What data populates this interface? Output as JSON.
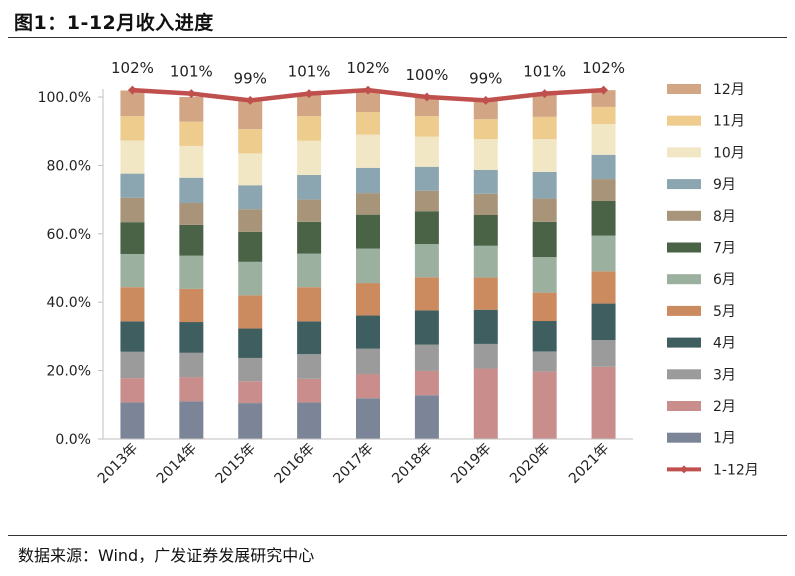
{
  "header": {
    "title": "图1：1-12月收入进度"
  },
  "footer": {
    "source": "数据来源：Wind，广发证券发展研究中心"
  },
  "chart_data": {
    "type": "bar",
    "stacked": true,
    "categories": [
      "2013年",
      "2014年",
      "2015年",
      "2016年",
      "2017年",
      "2018年",
      "2019年",
      "2020年",
      "2021年"
    ],
    "series": [
      {
        "name": "1月",
        "color": "#7b8597",
        "values": [
          10.7,
          11.0,
          10.5,
          10.7,
          11.9,
          12.8,
          0,
          0,
          0
        ]
      },
      {
        "name": "2月",
        "color": "#c98e8c",
        "values": [
          7.1,
          7.1,
          6.4,
          6.9,
          7.1,
          7.1,
          20.6,
          19.7,
          21.1
        ]
      },
      {
        "name": "3月",
        "color": "#9b9b9b",
        "values": [
          7.7,
          7.1,
          6.8,
          7.2,
          7.4,
          7.7,
          7.2,
          5.9,
          7.8
        ]
      },
      {
        "name": "4月",
        "color": "#3f5e5f",
        "values": [
          8.9,
          9.0,
          8.6,
          9.6,
          9.7,
          10.0,
          10.0,
          8.9,
          10.7
        ]
      },
      {
        "name": "5月",
        "color": "#cc8b5f",
        "values": [
          10.0,
          9.7,
          9.7,
          10.0,
          9.5,
          9.7,
          9.4,
          8.3,
          9.4
        ]
      },
      {
        "name": "6月",
        "color": "#9bb09f",
        "values": [
          9.7,
          9.7,
          9.8,
          9.8,
          10.1,
          9.7,
          9.3,
          10.4,
          10.5
        ]
      },
      {
        "name": "7月",
        "color": "#4a6347",
        "values": [
          9.3,
          9.0,
          8.8,
          9.3,
          9.9,
          9.6,
          9.0,
          10.3,
          10.1
        ]
      },
      {
        "name": "8月",
        "color": "#a89479",
        "values": [
          7.1,
          6.4,
          6.6,
          6.5,
          6.3,
          6.0,
          6.2,
          6.8,
          6.4
        ]
      },
      {
        "name": "9月",
        "color": "#8ba6b0",
        "values": [
          7.1,
          7.4,
          7.0,
          7.2,
          7.4,
          7.0,
          7.0,
          7.8,
          7.1
        ]
      },
      {
        "name": "10月",
        "color": "#f2e7c4",
        "values": [
          9.7,
          9.3,
          9.3,
          10.0,
          9.7,
          8.8,
          9.0,
          9.6,
          9.0
        ]
      },
      {
        "name": "11月",
        "color": "#edcc8e",
        "values": [
          7.1,
          7.1,
          7.1,
          7.2,
          6.6,
          6.0,
          5.8,
          6.5,
          5.0
        ]
      },
      {
        "name": "12月",
        "color": "#d2a585",
        "values": [
          7.5,
          7.2,
          8.4,
          6.6,
          6.4,
          5.6,
          5.5,
          6.8,
          4.9
        ]
      }
    ],
    "line": {
      "name": "1-12月",
      "color": "#c0504d",
      "values": [
        102,
        101,
        99,
        101,
        102,
        100,
        99,
        101,
        102
      ],
      "labels": [
        "102%",
        "101%",
        "99%",
        "101%",
        "102%",
        "100%",
        "99%",
        "101%",
        "102%"
      ]
    },
    "yaxis": {
      "min": 0,
      "max": 100,
      "step": 20,
      "tick_labels": [
        "0.0%",
        "20.0%",
        "40.0%",
        "60.0%",
        "80.0%",
        "100.0%"
      ]
    },
    "legend": {
      "position": "right",
      "order": "reverse"
    },
    "grid": false
  }
}
